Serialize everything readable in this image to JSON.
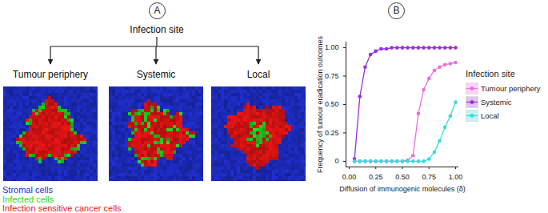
{
  "diagram": {
    "label": "A",
    "root": "Infection site",
    "children": [
      "Tumour periphery",
      "Systemic",
      "Local"
    ],
    "legend": [
      {
        "label": "Stromal cells",
        "color": "#1f2fd0"
      },
      {
        "label": "Infected cells",
        "color": "#22dd22"
      },
      {
        "label": "Infection sensitive cancer cells",
        "color": "#ee1515"
      }
    ]
  },
  "chart_data": {
    "panel_label": "B",
    "type": "line",
    "marker": "circle",
    "x_label": "Diffusion of immunogenic molecules (δ)",
    "y_label": "Frequency of tumour eradication outcomes",
    "x": [
      0.05,
      0.1,
      0.15,
      0.2,
      0.25,
      0.3,
      0.35,
      0.4,
      0.45,
      0.5,
      0.55,
      0.6,
      0.65,
      0.7,
      0.75,
      0.8,
      0.85,
      0.9,
      0.95,
      1.0
    ],
    "series": [
      {
        "name": "Tumour periphery",
        "color": "#ee6ee0",
        "values": [
          0,
          0,
          0,
          0,
          0,
          0,
          0,
          0,
          0,
          0,
          0.01,
          0.05,
          0.42,
          0.63,
          0.73,
          0.8,
          0.83,
          0.85,
          0.86,
          0.87
        ]
      },
      {
        "name": "Systemic",
        "color": "#9b30d9",
        "values": [
          0.02,
          0.57,
          0.83,
          0.94,
          0.97,
          0.99,
          0.99,
          1,
          1,
          1,
          1,
          1,
          1,
          1,
          1,
          1,
          1,
          1,
          1,
          1
        ]
      },
      {
        "name": "Local",
        "color": "#33dddd",
        "values": [
          0,
          0,
          0,
          0,
          0,
          0,
          0,
          0,
          0,
          0,
          0,
          0,
          0,
          0,
          0.02,
          0.08,
          0.18,
          0.3,
          0.4,
          0.52
        ]
      }
    ],
    "xlim": [
      -0.03,
      1.03
    ],
    "ylim": [
      -0.05,
      1.05
    ],
    "xticks": [
      {
        "value": 0,
        "label": "0.00"
      },
      0.25,
      {
        "value": 0.5,
        "label": "0.50"
      },
      0.75,
      {
        "value": 1,
        "label": "1.00"
      }
    ],
    "yticks": [
      0,
      0.25,
      {
        "value": 0.5,
        "label": "0.50"
      },
      0.75,
      {
        "value": 1,
        "label": "1.00"
      }
    ],
    "grid": false,
    "legend": "right",
    "legend_title": "Infection site"
  }
}
